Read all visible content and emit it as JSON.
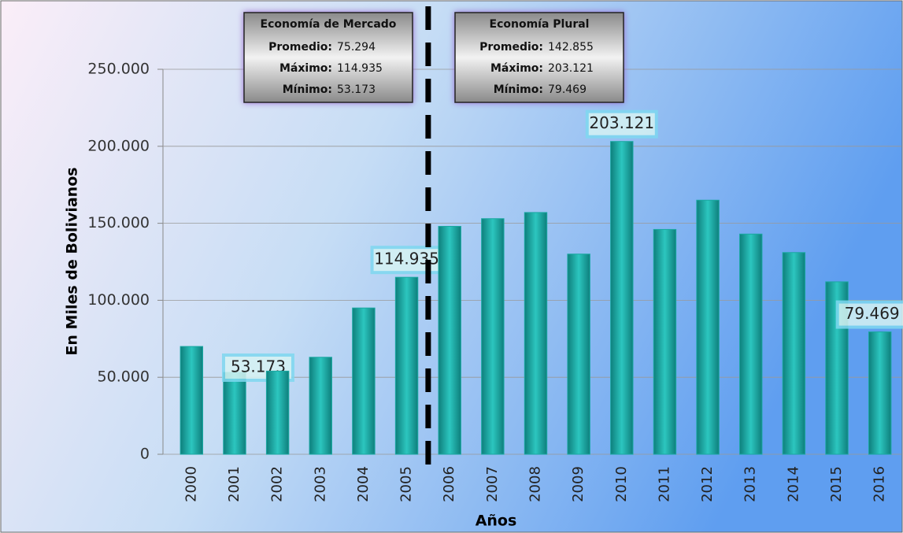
{
  "chart_data": {
    "type": "bar",
    "y_label": "En Miles de Bolivianos",
    "x_label": "Años",
    "categories": [
      "2000",
      "2001",
      "2002",
      "2003",
      "2004",
      "2005",
      "2006",
      "2007",
      "2008",
      "2009",
      "2010",
      "2011",
      "2012",
      "2013",
      "2014",
      "2015",
      "2016"
    ],
    "values": [
      70000,
      53173,
      54000,
      63000,
      95000,
      114935,
      148000,
      153000,
      157000,
      130000,
      203121,
      146000,
      165000,
      143000,
      131000,
      112000,
      79469
    ],
    "value_labels": [
      null,
      "53.173",
      null,
      null,
      null,
      "114.935",
      null,
      null,
      null,
      null,
      "203.121",
      null,
      null,
      null,
      null,
      null,
      "79.469"
    ],
    "color": "#1aa8a2",
    "ylim": [
      0,
      250000
    ],
    "yticks": [
      0,
      {
        "value": 50000,
        "label": "50.000"
      },
      {
        "value": 100000,
        "label": "100.000"
      },
      {
        "value": 150000,
        "label": "150.000"
      },
      {
        "value": 200000,
        "label": "200.000"
      },
      {
        "value": 250000,
        "label": "250.000"
      }
    ],
    "grid": true,
    "annotations": [
      {
        "title": "Economía de Mercado",
        "lines": [
          {
            "label": "Promedio:",
            "value": "75.294"
          },
          {
            "label": "Máximo:",
            "value": "114.935"
          },
          {
            "label": "Mínimo:",
            "value": "53.173"
          }
        ]
      },
      {
        "title": "Economía Plural",
        "lines": [
          {
            "label": "Promedio:",
            "value": "142.855"
          },
          {
            "label": "Máximo:",
            "value": "203.121"
          },
          {
            "label": "Mínimo:",
            "value": "79.469"
          }
        ]
      }
    ]
  }
}
